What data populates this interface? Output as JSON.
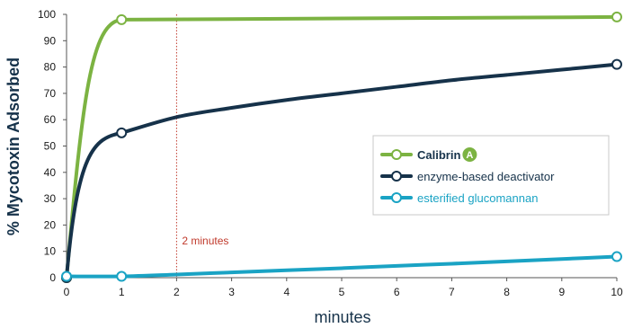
{
  "chart_data": {
    "type": "line",
    "xlabel": "minutes",
    "ylabel": "% Mycotoxin Adsorbed",
    "xlim": [
      0,
      10
    ],
    "ylim": [
      0,
      100
    ],
    "x_ticks": [
      "0",
      "1",
      "2",
      "3",
      "4",
      "5",
      "6",
      "7",
      "8",
      "9",
      "10"
    ],
    "y_ticks": [
      "0",
      "10",
      "20",
      "30",
      "40",
      "50",
      "60",
      "70",
      "80",
      "90",
      "100"
    ],
    "grid": false,
    "legend_position": "right",
    "annotation": {
      "x": 2,
      "label": "2 minutes",
      "color": "#c0392b"
    },
    "series": [
      {
        "name": "Calibrin",
        "badge": "A",
        "color": "#7cb342",
        "points": [
          [
            0,
            0
          ],
          [
            1,
            98
          ],
          [
            10,
            99
          ]
        ],
        "markers": [
          [
            0,
            0
          ],
          [
            1,
            98
          ],
          [
            10,
            99
          ]
        ]
      },
      {
        "name": "enzyme-based deactivator",
        "color": "#16324a",
        "points": [
          [
            0,
            0
          ],
          [
            0.3,
            33
          ],
          [
            0.6,
            47
          ],
          [
            1,
            55
          ],
          [
            2,
            61
          ],
          [
            3,
            64.5
          ],
          [
            4,
            67.5
          ],
          [
            5,
            70
          ],
          [
            6,
            72.5
          ],
          [
            7,
            75
          ],
          [
            8,
            77
          ],
          [
            9,
            79
          ],
          [
            10,
            81
          ]
        ],
        "markers": [
          [
            0,
            0
          ],
          [
            1,
            55
          ],
          [
            10,
            81
          ]
        ]
      },
      {
        "name": "esterified glucomannan",
        "color": "#1aa3c4",
        "points": [
          [
            0,
            0.5
          ],
          [
            1,
            0.5
          ],
          [
            2,
            1.2
          ],
          [
            3,
            2
          ],
          [
            4,
            2.8
          ],
          [
            5,
            3.6
          ],
          [
            6,
            4.5
          ],
          [
            7,
            5.3
          ],
          [
            8,
            6.2
          ],
          [
            9,
            7.1
          ],
          [
            10,
            8
          ]
        ],
        "markers": [
          [
            0,
            0.5
          ],
          [
            1,
            0.5
          ],
          [
            10,
            8
          ]
        ]
      }
    ]
  }
}
